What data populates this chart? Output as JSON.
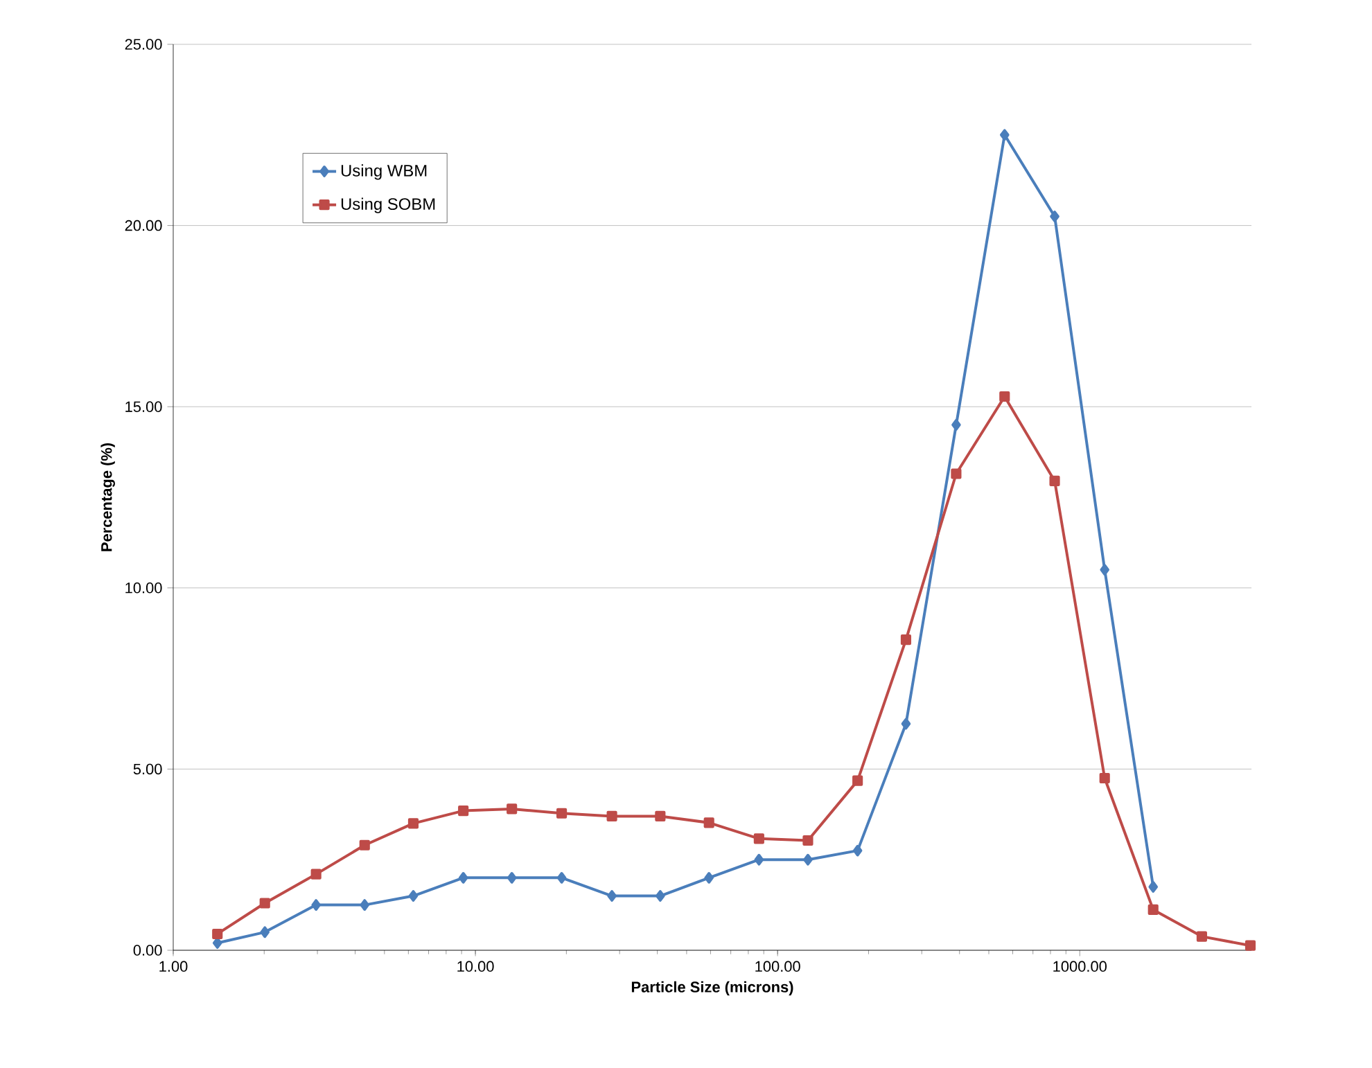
{
  "chart_data": {
    "type": "line",
    "xlabel": "Particle Size (microns)",
    "ylabel": "Percentage (%)",
    "log": "x",
    "xlim": [
      1,
      3700
    ],
    "ylim": [
      0,
      25
    ],
    "xticks": [
      {
        "value": 1,
        "label": "1.00"
      },
      {
        "value": 10,
        "label": "10.00"
      },
      {
        "value": 100,
        "label": "100.00"
      },
      {
        "value": 1000,
        "label": "1000.00"
      }
    ],
    "yticks": [
      {
        "value": 0,
        "label": "0.00"
      },
      {
        "value": 5,
        "label": "5.00"
      },
      {
        "value": 10,
        "label": "10.00"
      },
      {
        "value": 15,
        "label": "15.00"
      },
      {
        "value": 20,
        "label": "20.00"
      },
      {
        "value": 25,
        "label": "25.00"
      }
    ],
    "grid": "y",
    "legend": "top left",
    "series": [
      {
        "name": "Using WBM",
        "color": "#4a7ebb",
        "marker": "diamond",
        "x": [
          1.4,
          2.01,
          2.97,
          4.3,
          6.23,
          9.12,
          13.2,
          19.3,
          28.3,
          40.9,
          59.3,
          86.8,
          126,
          184,
          266,
          390,
          564,
          826,
          1209,
          1750
        ],
        "values": [
          0.2,
          0.5,
          1.25,
          1.25,
          1.5,
          2.0,
          2.0,
          2.0,
          1.5,
          1.5,
          2.0,
          2.5,
          2.5,
          2.75,
          6.25,
          14.5,
          22.5,
          20.25,
          10.5,
          1.75
        ]
      },
      {
        "name": "Using SOBM",
        "color": "#be4b48",
        "marker": "square",
        "x": [
          1.4,
          2.01,
          2.97,
          4.3,
          6.23,
          9.12,
          13.2,
          19.3,
          28.3,
          40.9,
          59.3,
          86.8,
          126,
          184,
          266,
          390,
          564,
          826,
          1209,
          1750,
          2535,
          3670
        ],
        "values": [
          0.45,
          1.3,
          2.1,
          2.9,
          3.5,
          3.85,
          3.9,
          3.78,
          3.7,
          3.7,
          3.52,
          3.08,
          3.03,
          4.68,
          8.57,
          13.15,
          15.28,
          12.95,
          4.75,
          1.12,
          0.38,
          0.13
        ]
      }
    ]
  }
}
